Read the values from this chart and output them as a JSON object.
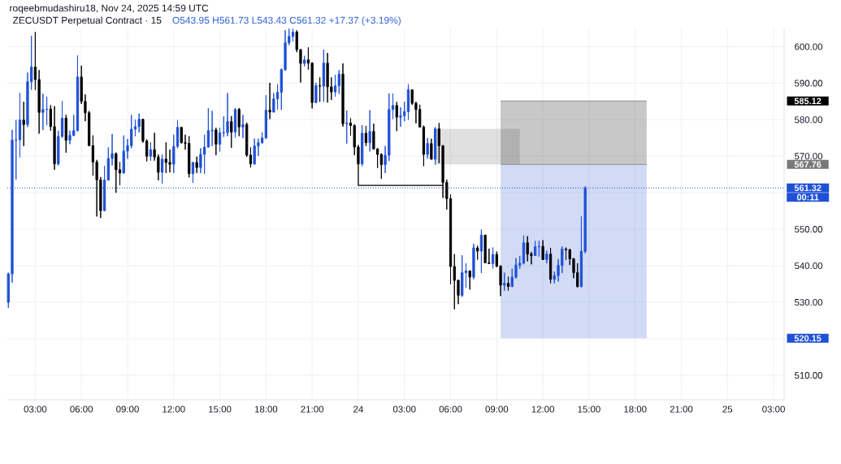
{
  "chart_data": {
    "type": "candlestick",
    "title": "ZECUSDT Perpetual Contract · 15",
    "subtitle": "O543.95 H561.73 L543.43 C561.32 +17.37 (+3.19%)",
    "annotations": [
      "roqeebmudashiru18, Nov 24, 2025 14:59 UTC",
      "00:11"
    ],
    "x": [
      "2025-11-23T01:15",
      "2025-11-23T01:30",
      "2025-11-23T01:45",
      "2025-11-23T02:00",
      "2025-11-23T02:15",
      "2025-11-23T02:30",
      "2025-11-23T02:45",
      "2025-11-23T03:00",
      "2025-11-23T03:15",
      "2025-11-23T03:30",
      "2025-11-23T03:45",
      "2025-11-23T04:00",
      "2025-11-23T04:15",
      "2025-11-23T04:30",
      "2025-11-23T04:45",
      "2025-11-23T05:00",
      "2025-11-23T05:15",
      "2025-11-23T05:30",
      "2025-11-23T05:45",
      "2025-11-23T06:00",
      "2025-11-23T06:15",
      "2025-11-23T06:30",
      "2025-11-23T06:45",
      "2025-11-23T07:00",
      "2025-11-23T07:15",
      "2025-11-23T07:30",
      "2025-11-23T07:45",
      "2025-11-23T08:00",
      "2025-11-23T08:15",
      "2025-11-23T08:30",
      "2025-11-23T08:45",
      "2025-11-23T09:00",
      "2025-11-23T09:15",
      "2025-11-23T09:30",
      "2025-11-23T09:45",
      "2025-11-23T10:00",
      "2025-11-23T10:15",
      "2025-11-23T10:30",
      "2025-11-23T10:45",
      "2025-11-23T11:00",
      "2025-11-23T11:15",
      "2025-11-23T11:30",
      "2025-11-23T11:45",
      "2025-11-23T12:00",
      "2025-11-23T12:15",
      "2025-11-23T12:30",
      "2025-11-23T12:45",
      "2025-11-23T13:00",
      "2025-11-23T13:15",
      "2025-11-23T13:30",
      "2025-11-23T13:45",
      "2025-11-23T14:00",
      "2025-11-23T14:15",
      "2025-11-23T14:30",
      "2025-11-23T14:45",
      "2025-11-23T15:00",
      "2025-11-23T15:15",
      "2025-11-23T15:30",
      "2025-11-23T15:45",
      "2025-11-23T16:00",
      "2025-11-23T16:15",
      "2025-11-23T16:30",
      "2025-11-23T16:45",
      "2025-11-23T17:00",
      "2025-11-23T17:15",
      "2025-11-23T17:30",
      "2025-11-23T17:45",
      "2025-11-23T18:00",
      "2025-11-23T18:15",
      "2025-11-23T18:30",
      "2025-11-23T18:45",
      "2025-11-23T19:00",
      "2025-11-23T19:15",
      "2025-11-23T19:30",
      "2025-11-23T19:45",
      "2025-11-23T20:00",
      "2025-11-23T20:15",
      "2025-11-23T20:30",
      "2025-11-23T20:45",
      "2025-11-23T21:00",
      "2025-11-23T21:15",
      "2025-11-23T21:30",
      "2025-11-23T21:45",
      "2025-11-23T22:00",
      "2025-11-23T22:15",
      "2025-11-23T22:30",
      "2025-11-23T22:45",
      "2025-11-23T23:00",
      "2025-11-23T23:15",
      "2025-11-23T23:30",
      "2025-11-23T23:45",
      "2025-11-24T00:00",
      "2025-11-24T00:15",
      "2025-11-24T00:30",
      "2025-11-24T00:45",
      "2025-11-24T01:00",
      "2025-11-24T01:15",
      "2025-11-24T01:30",
      "2025-11-24T01:45",
      "2025-11-24T02:00",
      "2025-11-24T02:15",
      "2025-11-24T02:30",
      "2025-11-24T02:45",
      "2025-11-24T03:00",
      "2025-11-24T03:15",
      "2025-11-24T03:30",
      "2025-11-24T03:45",
      "2025-11-24T04:00",
      "2025-11-24T04:15",
      "2025-11-24T04:30",
      "2025-11-24T04:45",
      "2025-11-24T05:00",
      "2025-11-24T05:15",
      "2025-11-24T05:30",
      "2025-11-24T05:45",
      "2025-11-24T06:00",
      "2025-11-24T06:15",
      "2025-11-24T06:30",
      "2025-11-24T06:45",
      "2025-11-24T07:00",
      "2025-11-24T07:15",
      "2025-11-24T07:30",
      "2025-11-24T07:45",
      "2025-11-24T08:00",
      "2025-11-24T08:15",
      "2025-11-24T08:30",
      "2025-11-24T08:45",
      "2025-11-24T09:00",
      "2025-11-24T09:15",
      "2025-11-24T09:30",
      "2025-11-24T09:45",
      "2025-11-24T10:00",
      "2025-11-24T10:15",
      "2025-11-24T10:30",
      "2025-11-24T10:45",
      "2025-11-24T11:00",
      "2025-11-24T11:15",
      "2025-11-24T11:30",
      "2025-11-24T11:45",
      "2025-11-24T12:00",
      "2025-11-24T12:15",
      "2025-11-24T12:30",
      "2025-11-24T12:45",
      "2025-11-24T13:00",
      "2025-11-24T13:15",
      "2025-11-24T13:30",
      "2025-11-24T13:45",
      "2025-11-24T14:00",
      "2025-11-24T14:15",
      "2025-11-24T14:30",
      "2025-11-24T14:45"
    ],
    "ohlc": [
      [
        530.0,
        538.1,
        528.5,
        537.8
      ],
      [
        537.8,
        577.2,
        535.4,
        574.4
      ],
      [
        574.4,
        579.9,
        563.6,
        574.5
      ],
      [
        574.5,
        587.3,
        569.7,
        579.9
      ],
      [
        579.9,
        584.9,
        572.8,
        578.7
      ],
      [
        578.7,
        592.9,
        578.0,
        590.4
      ],
      [
        590.4,
        603.0,
        588.2,
        594.4
      ],
      [
        594.4,
        604.0,
        588.2,
        591.0
      ],
      [
        591.0,
        593.6,
        576.2,
        582.0
      ],
      [
        582.0,
        587.1,
        577.2,
        582.8
      ],
      [
        582.8,
        586.3,
        578.5,
        582.9
      ],
      [
        582.9,
        584.0,
        577.0,
        578.1
      ],
      [
        578.1,
        583.7,
        566.3,
        567.9
      ],
      [
        567.9,
        577.0,
        567.5,
        575.4
      ],
      [
        575.4,
        585.1,
        575.0,
        580.4
      ],
      [
        580.4,
        581.3,
        571.0,
        574.4
      ],
      [
        574.4,
        577.0,
        573.3,
        575.7
      ],
      [
        575.7,
        581.3,
        575.5,
        577.0
      ],
      [
        577.0,
        597.6,
        576.8,
        591.7
      ],
      [
        591.7,
        594.8,
        584.3,
        585.0
      ],
      [
        585.0,
        586.9,
        579.6,
        581.9
      ],
      [
        581.9,
        582.4,
        572.8,
        572.9
      ],
      [
        572.9,
        575.7,
        564.7,
        568.4
      ],
      [
        568.4,
        569.0,
        553.5,
        563.5
      ],
      [
        563.5,
        564.3,
        553.1,
        555.1
      ],
      [
        555.1,
        567.3,
        555.0,
        563.5
      ],
      [
        563.5,
        572.4,
        563.3,
        569.4
      ],
      [
        569.4,
        576.1,
        567.5,
        570.7
      ],
      [
        570.7,
        571.0,
        560.0,
        566.3
      ],
      [
        566.3,
        568.4,
        562.1,
        565.4
      ],
      [
        565.4,
        575.7,
        565.3,
        571.4
      ],
      [
        571.4,
        574.7,
        569.3,
        572.9
      ],
      [
        572.9,
        581.3,
        572.2,
        577.4
      ],
      [
        577.4,
        580.0,
        575.5,
        578.1
      ],
      [
        578.1,
        581.7,
        576.5,
        580.1
      ],
      [
        580.1,
        580.2,
        573.7,
        574.2
      ],
      [
        574.2,
        574.6,
        568.6,
        570.0
      ],
      [
        570.0,
        573.8,
        568.8,
        571.8
      ],
      [
        571.8,
        576.4,
        568.8,
        569.8
      ],
      [
        569.8,
        570.5,
        563.4,
        565.6
      ],
      [
        565.6,
        570.5,
        562.5,
        569.2
      ],
      [
        569.2,
        573.8,
        565.4,
        568.3
      ],
      [
        568.3,
        571.8,
        565.6,
        567.8
      ],
      [
        567.8,
        575.9,
        565.4,
        572.7
      ],
      [
        572.7,
        579.9,
        572.2,
        577.9
      ],
      [
        577.9,
        578.0,
        573.5,
        573.7
      ],
      [
        573.7,
        575.9,
        571.8,
        573.5
      ],
      [
        573.5,
        575.5,
        564.2,
        565.2
      ],
      [
        565.2,
        568.4,
        562.7,
        568.3
      ],
      [
        568.3,
        569.9,
        565.4,
        566.9
      ],
      [
        566.9,
        572.2,
        565.4,
        570.5
      ],
      [
        570.5,
        575.9,
        565.2,
        572.5
      ],
      [
        572.5,
        583.2,
        572.4,
        577.0
      ],
      [
        577.0,
        582.4,
        572.8,
        577.2
      ],
      [
        577.2,
        577.8,
        570.3,
        573.3
      ],
      [
        573.3,
        577.8,
        571.3,
        576.4
      ],
      [
        576.4,
        580.9,
        575.3,
        576.5
      ],
      [
        576.5,
        587.3,
        575.5,
        579.5
      ],
      [
        579.5,
        581.0,
        572.3,
        576.6
      ],
      [
        576.6,
        583.2,
        575.1,
        582.8
      ],
      [
        582.8,
        583.2,
        575.5,
        578.0
      ],
      [
        578.0,
        581.3,
        575.0,
        578.7
      ],
      [
        578.7,
        579.2,
        569.8,
        570.3
      ],
      [
        570.3,
        572.4,
        566.9,
        567.9
      ],
      [
        567.9,
        574.8,
        567.7,
        572.8
      ],
      [
        572.8,
        574.8,
        570.1,
        573.7
      ],
      [
        573.7,
        576.5,
        573.4,
        575.0
      ],
      [
        575.0,
        586.7,
        574.8,
        582.6
      ],
      [
        582.6,
        590.1,
        580.2,
        582.1
      ],
      [
        582.1,
        587.3,
        582.0,
        585.7
      ],
      [
        585.7,
        589.7,
        582.8,
        587.5
      ],
      [
        587.5,
        594.0,
        582.7,
        593.7
      ],
      [
        593.7,
        604.5,
        593.4,
        601.1
      ],
      [
        601.1,
        604.9,
        600.4,
        602.8
      ],
      [
        602.8,
        604.9,
        601.5,
        604.0
      ],
      [
        604.0,
        604.5,
        598.5,
        599.2
      ],
      [
        599.2,
        599.3,
        590.2,
        595.4
      ],
      [
        595.4,
        597.5,
        594.6,
        596.4
      ],
      [
        596.4,
        599.8,
        593.7,
        595.5
      ],
      [
        595.5,
        595.7,
        583.1,
        584.7
      ],
      [
        584.7,
        590.1,
        584.6,
        589.3
      ],
      [
        589.3,
        591.6,
        584.9,
        589.2
      ],
      [
        589.2,
        599.2,
        584.9,
        595.5
      ],
      [
        595.5,
        598.3,
        584.7,
        589.0
      ],
      [
        589.0,
        591.6,
        585.4,
        587.6
      ],
      [
        587.6,
        592.3,
        586.3,
        589.3
      ],
      [
        589.3,
        593.6,
        587.1,
        592.5
      ],
      [
        592.5,
        595.4,
        578.1,
        578.9
      ],
      [
        578.9,
        582.5,
        573.5,
        579.1
      ],
      [
        579.1,
        580.4,
        575.7,
        578.4
      ],
      [
        578.4,
        578.7,
        570.3,
        572.5
      ],
      [
        572.5,
        573.1,
        567.5,
        567.9
      ],
      [
        567.9,
        578.5,
        567.3,
        576.3
      ],
      [
        576.3,
        578.3,
        572.8,
        573.7
      ],
      [
        573.7,
        582.6,
        571.3,
        576.8
      ],
      [
        576.8,
        578.9,
        571.8,
        572.0
      ],
      [
        572.0,
        572.2,
        566.8,
        570.5
      ],
      [
        570.5,
        570.8,
        563.8,
        567.7
      ],
      [
        567.7,
        572.8,
        565.4,
        570.3
      ],
      [
        570.3,
        587.2,
        568.7,
        582.8
      ],
      [
        582.8,
        587.2,
        580.2,
        583.9
      ],
      [
        583.9,
        584.9,
        576.9,
        580.7
      ],
      [
        580.7,
        583.4,
        578.1,
        581.1
      ],
      [
        581.1,
        584.9,
        579.6,
        582.2
      ],
      [
        582.2,
        589.7,
        580.0,
        588.2
      ],
      [
        588.2,
        588.3,
        584.1,
        584.5
      ],
      [
        584.5,
        584.9,
        579.0,
        582.8
      ],
      [
        582.8,
        584.1,
        577.9,
        578.0
      ],
      [
        578.0,
        578.4,
        567.3,
        570.5
      ],
      [
        570.5,
        575.0,
        569.4,
        573.5
      ],
      [
        573.5,
        574.8,
        569.1,
        569.2
      ],
      [
        569.2,
        578.0,
        567.7,
        577.5
      ],
      [
        577.5,
        579.1,
        568.1,
        572.9
      ],
      [
        572.9,
        573.0,
        558.6,
        562.8
      ],
      [
        562.8,
        563.6,
        555.4,
        558.4
      ],
      [
        558.4,
        559.5,
        535.0,
        539.8
      ],
      [
        539.8,
        543.2,
        528.1,
        536.0
      ],
      [
        536.0,
        536.2,
        529.5,
        531.9
      ],
      [
        531.9,
        542.9,
        531.5,
        538.1
      ],
      [
        538.1,
        540.7,
        534.0,
        538.6
      ],
      [
        538.6,
        538.7,
        533.5,
        536.9
      ],
      [
        536.9,
        546.0,
        536.3,
        544.9
      ],
      [
        544.9,
        545.5,
        541.7,
        544.0
      ],
      [
        544.0,
        549.9,
        538.0,
        548.4
      ],
      [
        548.4,
        548.5,
        540.7,
        540.8
      ],
      [
        540.8,
        544.7,
        540.5,
        540.6
      ],
      [
        540.6,
        545.0,
        539.3,
        543.1
      ],
      [
        543.1,
        543.9,
        539.6,
        539.9
      ],
      [
        539.9,
        540.1,
        531.7,
        534.7
      ],
      [
        534.7,
        538.1,
        533.2,
        535.2
      ],
      [
        535.2,
        537.0,
        533.2,
        534.3
      ],
      [
        534.3,
        539.2,
        534.2,
        536.9
      ],
      [
        536.9,
        542.1,
        536.5,
        540.2
      ],
      [
        540.2,
        542.7,
        539.2,
        540.7
      ],
      [
        540.7,
        548.3,
        540.4,
        546.3
      ],
      [
        546.3,
        548.1,
        541.2,
        543.2
      ],
      [
        543.2,
        543.8,
        540.4,
        542.8
      ],
      [
        542.8,
        546.8,
        542.7,
        545.2
      ],
      [
        545.2,
        546.8,
        542.5,
        545.3
      ],
      [
        545.3,
        547.0,
        541.6,
        541.7
      ],
      [
        541.7,
        544.1,
        540.7,
        543.2
      ],
      [
        543.2,
        544.9,
        535.2,
        536.3
      ],
      [
        536.3,
        538.4,
        535.2,
        537.3
      ],
      [
        537.3,
        541.8,
        535.7,
        540.1
      ],
      [
        540.1,
        545.3,
        538.0,
        544.6
      ],
      [
        544.6,
        545.0,
        541.6,
        544.4
      ],
      [
        544.4,
        544.6,
        540.2,
        541.9
      ],
      [
        541.9,
        542.1,
        536.6,
        538.1
      ],
      [
        538.1,
        540.7,
        534.1,
        534.3
      ],
      [
        534.3,
        553.5,
        534.1,
        543.95
      ],
      [
        543.95,
        561.73,
        543.43,
        561.32
      ]
    ],
    "colors": [
      "#1f50d6",
      "#1f50d6",
      "#1f50d6",
      "#1f50d6",
      "#000000",
      "#1f50d6",
      "#1f50d6",
      "#000000",
      "#000000",
      "#1f50d6",
      "#1f50d6",
      "#000000",
      "#000000",
      "#1f50d6",
      "#1f50d6",
      "#000000",
      "#1f50d6",
      "#1f50d6",
      "#1f50d6",
      "#000000",
      "#000000",
      "#000000",
      "#000000",
      "#000000",
      "#000000",
      "#1f50d6",
      "#1f50d6",
      "#1f50d6",
      "#000000",
      "#000000",
      "#1f50d6",
      "#1f50d6",
      "#1f50d6",
      "#1f50d6",
      "#1f50d6",
      "#000000",
      "#000000",
      "#1f50d6",
      "#000000",
      "#000000",
      "#1f50d6",
      "#000000",
      "#000000",
      "#1f50d6",
      "#1f50d6",
      "#000000",
      "#000000",
      "#000000",
      "#1f50d6",
      "#000000",
      "#1f50d6",
      "#1f50d6",
      "#1f50d6",
      "#1f50d6",
      "#000000",
      "#1f50d6",
      "#1f50d6",
      "#1f50d6",
      "#000000",
      "#1f50d6",
      "#000000",
      "#1f50d6",
      "#000000",
      "#000000",
      "#1f50d6",
      "#1f50d6",
      "#1f50d6",
      "#1f50d6",
      "#000000",
      "#1f50d6",
      "#1f50d6",
      "#1f50d6",
      "#1f50d6",
      "#1f50d6",
      "#1f50d6",
      "#000000",
      "#000000",
      "#1f50d6",
      "#000000",
      "#000000",
      "#1f50d6",
      "#000000",
      "#1f50d6",
      "#000000",
      "#000000",
      "#1f50d6",
      "#1f50d6",
      "#000000",
      "#1f50d6",
      "#000000",
      "#000000",
      "#000000",
      "#1f50d6",
      "#000000",
      "#1f50d6",
      "#000000",
      "#000000",
      "#000000",
      "#1f50d6",
      "#1f50d6",
      "#1f50d6",
      "#000000",
      "#1f50d6",
      "#1f50d6",
      "#1f50d6",
      "#000000",
      "#000000",
      "#000000",
      "#000000",
      "#1f50d6",
      "#000000",
      "#1f50d6",
      "#000000",
      "#000000",
      "#000000",
      "#000000",
      "#000000",
      "#000000",
      "#1f50d6",
      "#1f50d6",
      "#000000",
      "#1f50d6",
      "#000000",
      "#1f50d6",
      "#000000",
      "#000000",
      "#1f50d6",
      "#000000",
      "#000000",
      "#1f50d6",
      "#000000",
      "#1f50d6",
      "#1f50d6",
      "#1f50d6",
      "#1f50d6",
      "#000000",
      "#000000",
      "#1f50d6",
      "#1f50d6",
      "#000000",
      "#1f50d6",
      "#000000",
      "#1f50d6",
      "#1f50d6",
      "#1f50d6",
      "#000000",
      "#000000",
      "#000000",
      "#000000",
      "#1f50d6",
      "#1f50d6"
    ],
    "series": [
      {
        "type": "area",
        "x": [
          "2025-11-24T05:00",
          "2025-11-24T10:30"
        ],
        "values": [
          null,
          null
        ],
        "lower": [
          567.76,
          567.76
        ],
        "upper": [
          577.5,
          577.5
        ],
        "color": "#e0e0e0"
      },
      {
        "type": "area",
        "x": [
          "2025-11-24T09:15",
          "2025-11-24T18:45"
        ],
        "values": [
          null,
          null
        ],
        "lower": [
          567.76,
          567.76
        ],
        "upper": [
          585.12,
          585.12
        ],
        "color": "#c8c8c8"
      },
      {
        "type": "area",
        "x": [
          "2025-11-24T09:15",
          "2025-11-24T18:45"
        ],
        "values": [
          null,
          null
        ],
        "lower": [
          520.15,
          520.15
        ],
        "upper": [
          567.76,
          567.76
        ],
        "color": "#d1dbf6"
      },
      {
        "type": "line",
        "x": [
          "2025-11-24T09:15",
          "2025-11-24T18:45"
        ],
        "values": [
          585.12,
          585.12
        ],
        "color": "#9a9a9a"
      },
      {
        "type": "line",
        "x": [
          "2025-11-24T09:15",
          "2025-11-24T18:45"
        ],
        "values": [
          567.76,
          567.76
        ],
        "color": "#9a9a9a"
      },
      {
        "type": "line",
        "x": [
          "2025-11-24T00:00",
          "2025-11-24T00:00",
          "2025-11-24T05:30"
        ],
        "values": [
          567.5,
          562.0,
          562.0
        ],
        "color": "#000000"
      }
    ],
    "ref_lines": [
      {
        "axis": "y",
        "value": 561.32,
        "label": "561.32",
        "color": "#1f50d6",
        "line_style": "dotted"
      }
    ],
    "xlim": [
      "2025-11-23T01:11",
      "2025-11-25T03:41"
    ],
    "xticks": [
      {
        "value": "2025-11-23T03:00",
        "label": "03:00"
      },
      {
        "value": "2025-11-23T06:00",
        "label": "06:00"
      },
      {
        "value": "2025-11-23T09:00",
        "label": "09:00"
      },
      {
        "value": "2025-11-23T12:00",
        "label": "12:00"
      },
      {
        "value": "2025-11-23T15:00",
        "label": "15:00"
      },
      {
        "value": "2025-11-23T18:00",
        "label": "18:00"
      },
      {
        "value": "2025-11-23T21:00",
        "label": "21:00"
      },
      {
        "value": "2025-11-24T00:00",
        "label": "24"
      },
      {
        "value": "2025-11-24T03:00",
        "label": "03:00"
      },
      {
        "value": "2025-11-24T06:00",
        "label": "06:00"
      },
      {
        "value": "2025-11-24T09:00",
        "label": "09:00"
      },
      {
        "value": "2025-11-24T12:00",
        "label": "12:00"
      },
      {
        "value": "2025-11-24T15:00",
        "label": "15:00"
      },
      {
        "value": "2025-11-24T18:00",
        "label": "18:00"
      },
      {
        "value": "2025-11-24T21:00",
        "label": "21:00"
      },
      {
        "value": "2025-11-25T00:00",
        "label": "25"
      },
      {
        "value": "2025-11-25T03:00",
        "label": "03:00"
      }
    ],
    "ylim": [
      503.3,
      605.0
    ],
    "yticks": [
      {
        "value": 510,
        "label": "510.00"
      },
      {
        "value": 520,
        "label": null
      },
      {
        "value": 520.15,
        "label": "520.15"
      },
      {
        "value": 530,
        "label": "530.00"
      },
      {
        "value": 540,
        "label": "540.00"
      },
      {
        "value": 550,
        "label": "550.00"
      },
      {
        "value": 560,
        "label": null
      },
      {
        "value": 567.76,
        "label": "567.76"
      },
      {
        "value": 570,
        "label": "570.00"
      },
      {
        "value": 580,
        "label": "580.00"
      },
      {
        "value": 585.12,
        "label": "585.12"
      },
      {
        "value": 590,
        "label": "590.00"
      },
      {
        "value": 600,
        "label": "600.00"
      }
    ],
    "grid": true
  }
}
